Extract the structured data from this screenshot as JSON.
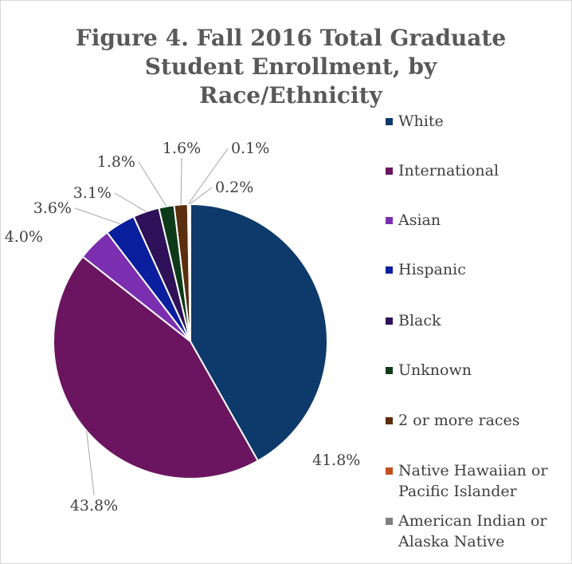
{
  "chart_data": {
    "type": "pie",
    "title": "Figure 4. Fall 2016 Total Graduate Student Enrollment, by Race/Ethnicity",
    "categories": [
      "White",
      "International",
      "Asian",
      "Hispanic",
      "Black",
      "Unknown",
      "2 or more races",
      "Native Hawaiian or Pacific Islander",
      "American Indian or Alaska Native"
    ],
    "values": [
      41.8,
      43.8,
      4.0,
      3.6,
      3.1,
      1.8,
      1.6,
      0.1,
      0.2
    ],
    "value_labels": [
      "41.8%",
      "43.8%",
      "4.0%",
      "3.6%",
      "3.1%",
      "1.8%",
      "1.6%",
      "0.1%",
      "0.2%"
    ],
    "colors": [
      "#0e3a6b",
      "#6b1560",
      "#7b2fb0",
      "#0a1f9e",
      "#2e1158",
      "#0d3b1a",
      "#5a2e0e",
      "#c0501c",
      "#7f7f7f"
    ],
    "legend": "right"
  }
}
